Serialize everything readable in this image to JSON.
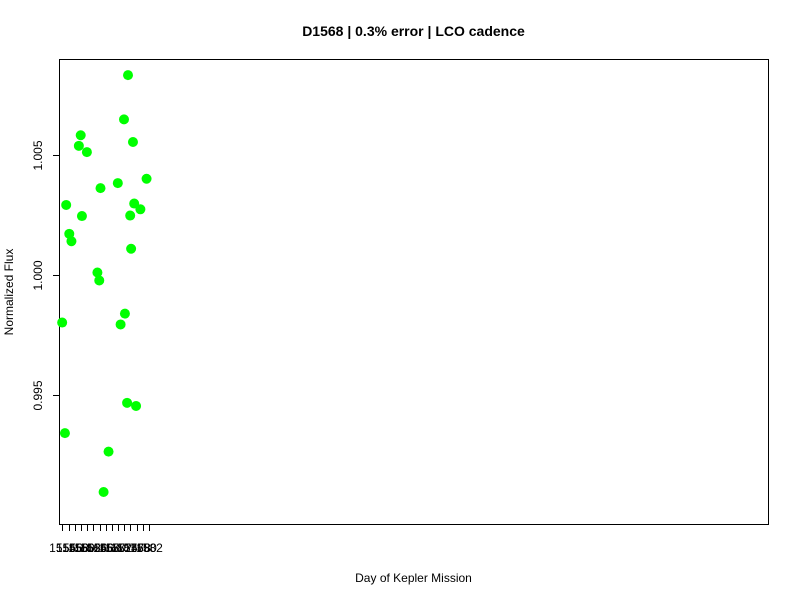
{
  "chart_data": {
    "type": "scatter",
    "title": "D1568 | 0.3% error | LCO cadence",
    "xlabel": "Day of Kepler Mission",
    "ylabel": "Normalized Flux",
    "xlim": [
      1553.2,
      1782.2
    ],
    "ylim": [
      0.98965,
      1.00895
    ],
    "x_ticks": [
      1554,
      1556,
      1558,
      1560,
      1562,
      1564,
      1566,
      1568,
      1570,
      1572,
      1574,
      1576,
      1578,
      1580,
      1582
    ],
    "x_tick_labels": [
      "1554",
      "1556",
      "1558",
      "1560",
      "1562",
      "1564",
      "1566",
      "1568",
      "1570",
      "1572",
      "1574",
      "1576",
      "1578",
      "1580",
      "1582"
    ],
    "y_ticks": [
      0.995,
      1.0,
      1.005
    ],
    "y_tick_labels": [
      "0.995",
      "1.000",
      "1.005"
    ],
    "grid": false,
    "point_color": "#00ff00",
    "series": [
      {
        "x": [
          1553.9,
          1554.8,
          1555.2,
          1556.2,
          1556.9,
          1559.3,
          1559.9,
          1560.3,
          1561.9,
          1565.3,
          1565.9,
          1566.3,
          1567.3,
          1568.9,
          1571.9,
          1572.8,
          1573.9,
          1574.2,
          1574.9,
          1575.2,
          1575.9,
          1576.2,
          1576.8,
          1577.2,
          1577.8,
          1579.2,
          1581.2
        ],
        "y": [
          0.99803,
          0.99343,
          1.00292,
          1.00172,
          1.00141,
          1.00538,
          1.00582,
          1.00246,
          1.00512,
          1.00011,
          0.99978,
          1.00362,
          0.99098,
          0.99266,
          1.00383,
          0.99795,
          1.00648,
          0.9984,
          0.99469,
          1.00832,
          1.00248,
          1.0011,
          1.00554,
          1.00298,
          0.99456,
          1.00274,
          1.00401
        ]
      }
    ]
  }
}
